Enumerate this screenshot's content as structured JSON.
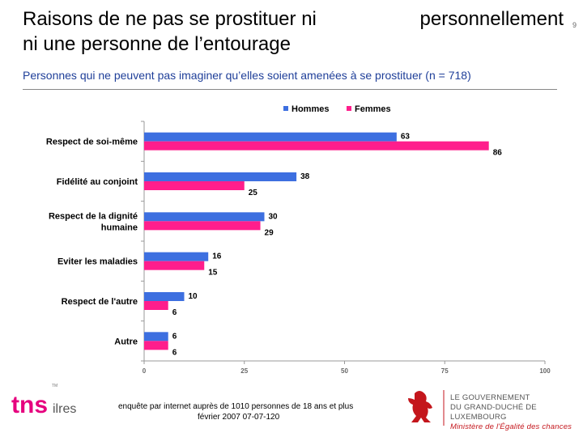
{
  "header": {
    "title_line1_part1": "Raisons de ne pas se prostituer ni",
    "title_line1_part2": "personnellement",
    "title_line2": "ni une personne de l’entourage",
    "page_number": "9",
    "subtitle": "Personnes qui ne peuvent pas imaginer qu’elles soient amenées à se prostituer (n =  718)"
  },
  "chart_data": {
    "type": "bar",
    "orientation": "horizontal",
    "categories": [
      "Respect de soi-même",
      "Fidélité au conjoint",
      "Respect de la dignité humaine",
      "Eviter les maladies",
      "Respect de l'autre",
      "Autre"
    ],
    "category_display": [
      [
        "Respect de soi-même"
      ],
      [
        "Fidélité au conjoint"
      ],
      [
        "Respect de la dignité",
        "humaine"
      ],
      [
        "Eviter les maladies"
      ],
      [
        "Respect de l'autre"
      ],
      [
        "Autre"
      ]
    ],
    "series": [
      {
        "name": "Hommes",
        "values": [
          63,
          38,
          30,
          16,
          10,
          6
        ],
        "color": "#3d6fe0"
      },
      {
        "name": "Femmes",
        "values": [
          86,
          25,
          29,
          15,
          6,
          6
        ],
        "color": "#ff1e8c"
      }
    ],
    "x_ticks": [
      "0",
      "25",
      "50",
      "75",
      "100"
    ],
    "xlim": [
      0,
      100
    ],
    "xlabel": "%",
    "legend_position": "top",
    "grid": false
  },
  "footer": {
    "note_line1": "enquête par internet auprès de 1010 personnes de 18 ans et plus",
    "note_line2": "février 2007     07-07-120",
    "tns_logo_text": "tns",
    "tns_logo_suffix": "ilres",
    "tns_tm": "TM",
    "gov_line1": "LE GOUVERNEMENT",
    "gov_line2": "DU GRAND-DUCHÉ DE LUXEMBOURG",
    "gov_line3": "Ministère de l'Égalité des chances"
  },
  "colors": {
    "accent_subtitle": "#1f3f99",
    "tns_magenta": "#e6007e",
    "lion_red": "#c4161c"
  }
}
